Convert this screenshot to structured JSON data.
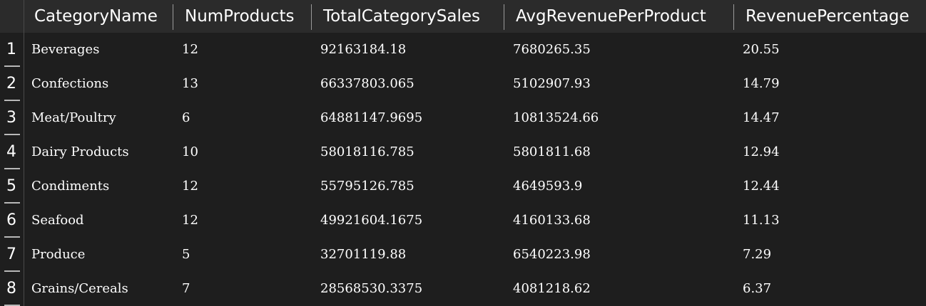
{
  "columns": [
    "CategoryName",
    "NumProducts",
    "TotalCategorySales",
    "AvgRevenuePerProduct",
    "RevenuePercentage"
  ],
  "rows": [
    {
      "num": "1",
      "cells": [
        "Beverages",
        "12",
        "92163184.18",
        "7680265.35",
        "20.55"
      ]
    },
    {
      "num": "2",
      "cells": [
        "Confections",
        "13",
        "66337803.065",
        "5102907.93",
        "14.79"
      ]
    },
    {
      "num": "3",
      "cells": [
        "Meat/Poultry",
        "6",
        "64881147.9695",
        "10813524.66",
        "14.47"
      ]
    },
    {
      "num": "4",
      "cells": [
        "Dairy Products",
        "10",
        "58018116.785",
        "5801811.68",
        "12.94"
      ]
    },
    {
      "num": "5",
      "cells": [
        "Condiments",
        "12",
        "55795126.785",
        "4649593.9",
        "12.44"
      ]
    },
    {
      "num": "6",
      "cells": [
        "Seafood",
        "12",
        "49921604.1675",
        "4160133.68",
        "11.13"
      ]
    },
    {
      "num": "7",
      "cells": [
        "Produce",
        "5",
        "32701119.88",
        "6540223.98",
        "7.29"
      ]
    },
    {
      "num": "8",
      "cells": [
        "Grains/Cereals",
        "7",
        "28568530.3375",
        "4081218.62",
        "6.37"
      ]
    }
  ],
  "colors": {
    "background": "#1e1e1e",
    "header_background": "#2b2b2b",
    "text": "#ffffff",
    "separator": "#9a9a9a"
  }
}
